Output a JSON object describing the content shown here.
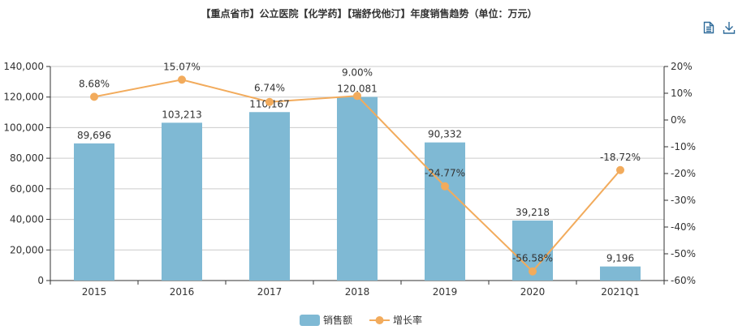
{
  "chart_data": {
    "type": "bar+line",
    "title": "【重点省市】公立医院【化学药】【瑞舒伐他汀】年度销售趋势（单位：万元）",
    "categories": [
      "2015",
      "2016",
      "2017",
      "2018",
      "2019",
      "2020",
      "2021Q1"
    ],
    "series": [
      {
        "name": "销售额",
        "type": "bar",
        "axis": "left",
        "color": "#7fb9d4",
        "values": [
          89696,
          103213,
          110167,
          120081,
          90332,
          39218,
          9196
        ],
        "labels": [
          "89,696",
          "103,213",
          "110,167",
          "120,081",
          "90,332",
          "39,218",
          "9,196"
        ]
      },
      {
        "name": "增长率",
        "type": "line",
        "axis": "right",
        "color": "#f2ab5c",
        "unit": "%",
        "values": [
          8.68,
          15.07,
          6.74,
          9.0,
          -24.77,
          -56.58,
          -18.72
        ],
        "labels": [
          "8.68%",
          "15.07%",
          "6.74%",
          "9.00%",
          "-24.77%",
          "-56.58%",
          "-18.72%"
        ]
      }
    ],
    "left_axis": {
      "ylim": [
        0,
        140000
      ],
      "ticks": [
        "0",
        "20,000",
        "40,000",
        "60,000",
        "80,000",
        "100,000",
        "120,000",
        "140,000"
      ]
    },
    "right_axis": {
      "ylim": [
        -60,
        20
      ],
      "ticks": [
        "-60%",
        "-50%",
        "-40%",
        "-30%",
        "-20%",
        "-10%",
        "0%",
        "10%",
        "20%"
      ]
    },
    "grid": true,
    "legend": "bottom-center"
  },
  "toolbox": {
    "icons": [
      "data-view-icon",
      "save-image-icon"
    ]
  }
}
